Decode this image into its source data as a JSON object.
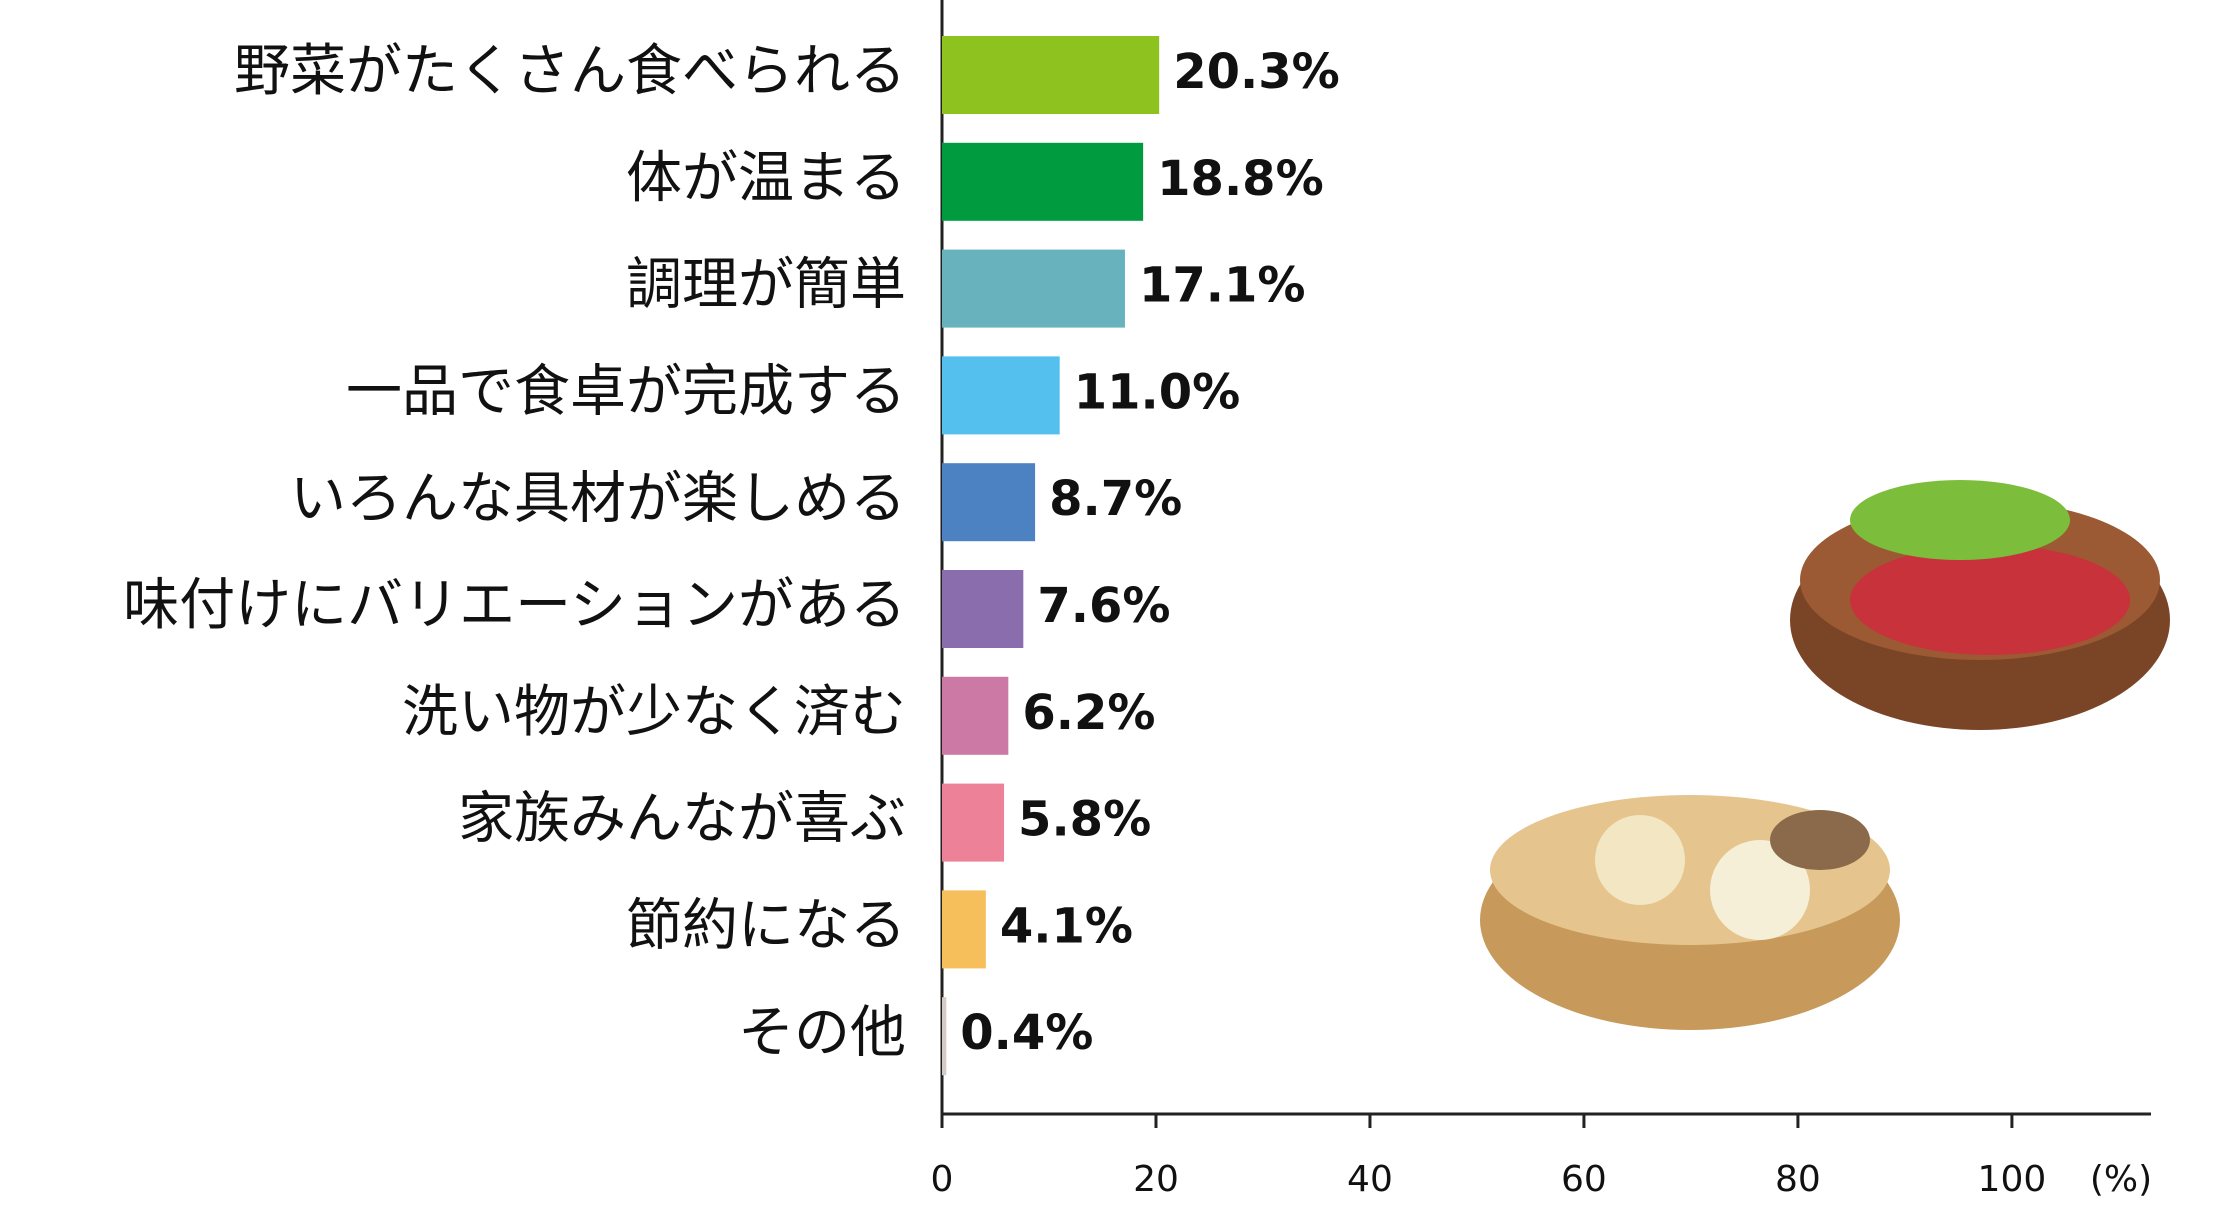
{
  "chart_data": {
    "type": "bar",
    "orientation": "horizontal",
    "categories": [
      "野菜がたくさん食べられる",
      "体が温まる",
      "調理が簡単",
      "一品で食卓が完成する",
      "いろんな具材が楽しめる",
      "味付けにバリエーションがある",
      "洗い物が少なく済む",
      "家族みんなが喜ぶ",
      "節約になる",
      "その他"
    ],
    "values": [
      20.3,
      18.8,
      17.1,
      11.0,
      8.7,
      7.6,
      6.2,
      5.8,
      4.1,
      0.4
    ],
    "value_labels": [
      "20.3%",
      "18.8%",
      "17.1%",
      "11.0%",
      "8.7%",
      "7.6%",
      "6.2%",
      "5.8%",
      "4.1%",
      "0.4%"
    ],
    "colors": [
      "#8dc21f",
      "#009b3e",
      "#67b2bd",
      "#54c0ee",
      "#4d82c2",
      "#8a6dac",
      "#cd79a5",
      "#ec8197",
      "#f6bf5c",
      "#d5cac6"
    ],
    "xlim": [
      0,
      113
    ],
    "xticks": [
      0,
      20,
      40,
      60,
      80,
      100
    ],
    "x_unit": "(%)"
  }
}
